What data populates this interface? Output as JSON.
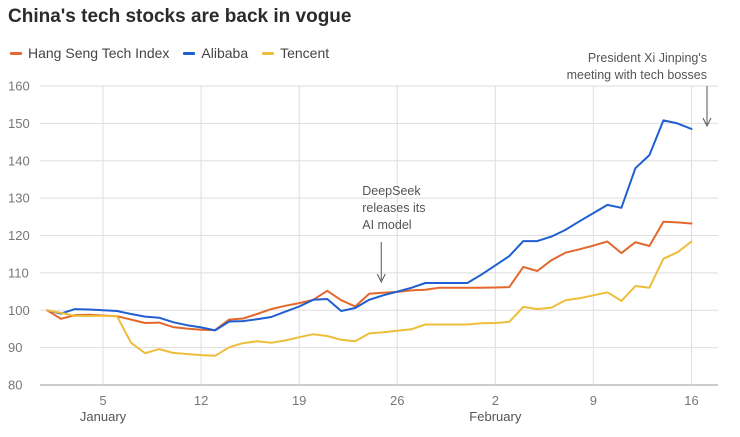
{
  "chart_data": {
    "type": "line",
    "title": "China's tech stocks are back in vogue",
    "xlabel": "",
    "ylabel": "",
    "ylim": [
      80,
      160
    ],
    "yticks": [
      80,
      90,
      100,
      110,
      120,
      130,
      140,
      150,
      160
    ],
    "x_tick_labels": [
      "5",
      "12",
      "19",
      "26",
      "2",
      "9",
      "16"
    ],
    "x_tick_days": [
      5,
      12,
      19,
      26,
      33,
      40,
      47
    ],
    "month_labels": [
      {
        "label": "January",
        "day": 5
      },
      {
        "label": "February",
        "day": 33
      }
    ],
    "x_range": [
      1,
      48
    ],
    "series": [
      {
        "name": "Hang Seng Tech Index",
        "color": "#e3682d",
        "points": [
          [
            1,
            100
          ],
          [
            2,
            97.7
          ],
          [
            3,
            98.7
          ],
          [
            4,
            98.8
          ],
          [
            5,
            98.6
          ],
          [
            6,
            98.4
          ],
          [
            7,
            97.5
          ],
          [
            8,
            96.6
          ],
          [
            9,
            96.7
          ],
          [
            10,
            95.5
          ],
          [
            11,
            95.1
          ],
          [
            12,
            94.8
          ],
          [
            13,
            94.7
          ],
          [
            14,
            97.5
          ],
          [
            15,
            97.8
          ],
          [
            16,
            99.0
          ],
          [
            17,
            100.3
          ],
          [
            18,
            101.2
          ],
          [
            19,
            101.9
          ],
          [
            20,
            102.8
          ],
          [
            21,
            105.2
          ],
          [
            22,
            102.7
          ],
          [
            23,
            101.0
          ],
          [
            24,
            104.4
          ],
          [
            25,
            104.7
          ],
          [
            26,
            104.9
          ],
          [
            27,
            105.3
          ],
          [
            28,
            105.5
          ],
          [
            29,
            106.0
          ],
          [
            30,
            106.0
          ],
          [
            31,
            106.0
          ],
          [
            32,
            106.0
          ],
          [
            33,
            106.1
          ],
          [
            34,
            106.2
          ],
          [
            35,
            111.6
          ],
          [
            36,
            110.5
          ],
          [
            37,
            113.4
          ],
          [
            38,
            115.4
          ],
          [
            39,
            116.3
          ],
          [
            40,
            117.3
          ],
          [
            41,
            118.4
          ],
          [
            42,
            115.3
          ],
          [
            43,
            118.2
          ],
          [
            44,
            117.2
          ],
          [
            45,
            123.7
          ],
          [
            46,
            123.5
          ],
          [
            47,
            123.2
          ]
        ]
      },
      {
        "name": "Alibaba",
        "color": "#1f5fd1",
        "points": [
          [
            1,
            100
          ],
          [
            2,
            99.1
          ],
          [
            3,
            100.3
          ],
          [
            4,
            100.2
          ],
          [
            5,
            100.0
          ],
          [
            6,
            99.8
          ],
          [
            7,
            99.0
          ],
          [
            8,
            98.3
          ],
          [
            9,
            98.0
          ],
          [
            10,
            96.8
          ],
          [
            11,
            96.0
          ],
          [
            12,
            95.4
          ],
          [
            13,
            94.6
          ],
          [
            14,
            97.0
          ],
          [
            15,
            97.1
          ],
          [
            16,
            97.6
          ],
          [
            17,
            98.2
          ],
          [
            18,
            99.6
          ],
          [
            19,
            101.0
          ],
          [
            20,
            102.8
          ],
          [
            21,
            103.0
          ],
          [
            22,
            99.8
          ],
          [
            23,
            100.6
          ],
          [
            24,
            102.8
          ],
          [
            25,
            104.0
          ],
          [
            26,
            105.0
          ],
          [
            27,
            106.0
          ],
          [
            28,
            107.3
          ],
          [
            29,
            107.3
          ],
          [
            30,
            107.3
          ],
          [
            31,
            107.3
          ],
          [
            32,
            109.5
          ],
          [
            33,
            112.0
          ],
          [
            34,
            114.5
          ],
          [
            35,
            118.5
          ],
          [
            36,
            118.5
          ],
          [
            37,
            119.7
          ],
          [
            38,
            121.5
          ],
          [
            39,
            123.8
          ],
          [
            40,
            126.0
          ],
          [
            41,
            128.2
          ],
          [
            42,
            127.4
          ],
          [
            43,
            138.0
          ],
          [
            44,
            141.5
          ],
          [
            45,
            150.8
          ],
          [
            46,
            150.0
          ],
          [
            47,
            148.5
          ]
        ]
      },
      {
        "name": "Tencent",
        "color": "#eebd3a",
        "points": [
          [
            1,
            100
          ],
          [
            2,
            99.3
          ],
          [
            3,
            98.5
          ],
          [
            4,
            98.5
          ],
          [
            5,
            98.5
          ],
          [
            6,
            98.4
          ],
          [
            7,
            91.3
          ],
          [
            8,
            88.5
          ],
          [
            9,
            89.6
          ],
          [
            10,
            88.6
          ],
          [
            11,
            88.3
          ],
          [
            12,
            88.0
          ],
          [
            13,
            87.8
          ],
          [
            14,
            90.1
          ],
          [
            15,
            91.2
          ],
          [
            16,
            91.7
          ],
          [
            17,
            91.3
          ],
          [
            18,
            91.9
          ],
          [
            19,
            92.8
          ],
          [
            20,
            93.6
          ],
          [
            21,
            93.1
          ],
          [
            22,
            92.1
          ],
          [
            23,
            91.7
          ],
          [
            24,
            93.8
          ],
          [
            25,
            94.1
          ],
          [
            26,
            94.5
          ],
          [
            27,
            94.9
          ],
          [
            28,
            96.2
          ],
          [
            29,
            96.2
          ],
          [
            30,
            96.2
          ],
          [
            31,
            96.2
          ],
          [
            32,
            96.5
          ],
          [
            33,
            96.6
          ],
          [
            34,
            96.9
          ],
          [
            35,
            100.9
          ],
          [
            36,
            100.3
          ],
          [
            37,
            100.7
          ],
          [
            38,
            102.7
          ],
          [
            39,
            103.2
          ],
          [
            40,
            104.0
          ],
          [
            41,
            104.8
          ],
          [
            42,
            102.5
          ],
          [
            43,
            106.5
          ],
          [
            44,
            106.0
          ],
          [
            45,
            113.8
          ],
          [
            46,
            115.5
          ],
          [
            47,
            118.4
          ]
        ]
      }
    ],
    "annotations": [
      {
        "lines": [
          "DeepSeek",
          "releases its",
          "AI model"
        ],
        "day": 25
      },
      {
        "lines": [
          "President Xi Jinping's",
          "meeting with tech bosses"
        ],
        "day": 47
      }
    ]
  }
}
